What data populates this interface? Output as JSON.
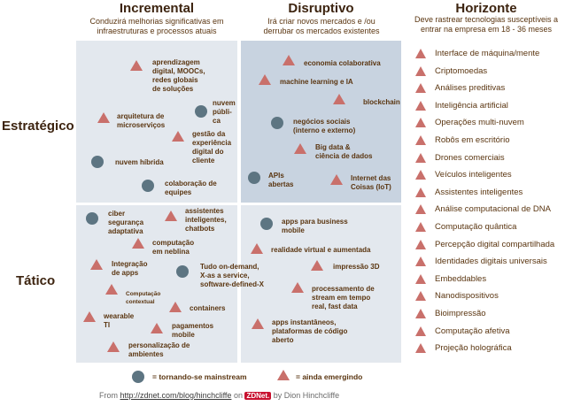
{
  "columns": {
    "incremental": {
      "title": "Incremental",
      "subtitle_1": "Conduzirá melhorias significativas em",
      "subtitle_2": "infraestruturas e processos atuais"
    },
    "disruptive": {
      "title": "Disruptivo",
      "subtitle_1": "Irá criar novos mercados e /ou",
      "subtitle_2": "derrubar os mercados existentes"
    },
    "horizon": {
      "title": "Horizonte",
      "subtitle_1": "Deve rastrear tecnologias susceptíveis a",
      "subtitle_2": "entrar na empresa em 18 - 36 meses"
    }
  },
  "rows": {
    "strategic": "Estratégico",
    "tactical": "Tático"
  },
  "quadrants": {
    "inc_strat": [
      {
        "lines": [
          "aprendizagem",
          "digital, MOOCs,",
          "redes globais",
          "de soluções"
        ],
        "marker": "triangle"
      },
      {
        "lines": [
          "nuvem",
          "públi-",
          "ca"
        ],
        "marker": "circle"
      },
      {
        "lines": [
          "arquitetura de",
          "microserviços"
        ],
        "marker": "triangle"
      },
      {
        "lines": [
          "gestão da",
          "experiência",
          "digital do",
          "cliente"
        ],
        "marker": "triangle"
      },
      {
        "lines": [
          "nuvem híbrida"
        ],
        "marker": "circle"
      },
      {
        "lines": [
          "colaboração de",
          "equipes"
        ],
        "marker": "circle"
      }
    ],
    "dis_strat": [
      {
        "lines": [
          "economia colaborativa"
        ],
        "marker": "triangle"
      },
      {
        "lines": [
          "machine learning e IA"
        ],
        "marker": "triangle"
      },
      {
        "lines": [
          "blockchain"
        ],
        "marker": "triangle"
      },
      {
        "lines": [
          "negócios sociais",
          "(interno e externo)"
        ],
        "marker": "circle"
      },
      {
        "lines": [
          "Big data &",
          "ciência de dados"
        ],
        "marker": "triangle"
      },
      {
        "lines": [
          "APIs",
          "abertas"
        ],
        "marker": "circle"
      },
      {
        "lines": [
          "Internet das",
          "Coisas (IoT)"
        ],
        "marker": "triangle"
      }
    ],
    "inc_tact": [
      {
        "lines": [
          "ciber",
          "segurança",
          "adaptativa"
        ],
        "marker": "circle"
      },
      {
        "lines": [
          "assistentes",
          "inteligentes,",
          "chatbots"
        ],
        "marker": "triangle"
      },
      {
        "lines": [
          "computação",
          "em neblina"
        ],
        "marker": "triangle"
      },
      {
        "lines": [
          "Integração",
          "de apps"
        ],
        "marker": "triangle"
      },
      {
        "lines": [
          "Tudo on-demand,",
          "X-as a service,",
          "software-defined-X"
        ],
        "marker": "circle"
      },
      {
        "lines": [
          "Computação",
          "contextual"
        ],
        "marker": "triangle"
      },
      {
        "lines": [
          "containers"
        ],
        "marker": "triangle"
      },
      {
        "lines": [
          "wearable",
          "TI"
        ],
        "marker": "triangle"
      },
      {
        "lines": [
          "pagamentos",
          "mobile"
        ],
        "marker": "triangle"
      },
      {
        "lines": [
          "personalização de",
          "ambientes"
        ],
        "marker": "triangle"
      }
    ],
    "dis_tact": [
      {
        "lines": [
          "apps para business",
          "mobile"
        ],
        "marker": "circle"
      },
      {
        "lines": [
          "realidade virtual e aumentada"
        ],
        "marker": "triangle"
      },
      {
        "lines": [
          "impressão 3D"
        ],
        "marker": "triangle"
      },
      {
        "lines": [
          "processamento de",
          "stream em tempo",
          "real, fast data"
        ],
        "marker": "triangle"
      },
      {
        "lines": [
          "apps instantâneos,",
          "plataformas de código",
          "aberto"
        ],
        "marker": "triangle"
      }
    ]
  },
  "horizon_items": [
    "Interface de máquina/mente",
    "Criptomoedas",
    "Análises preditivas",
    "Inteligência artificial",
    "Operações multi-nuvem",
    "Robôs em escritório",
    "Drones comerciais",
    "Veículos inteligentes",
    "Assistentes inteligentes",
    "Análise computacional de DNA",
    "Computação quântica",
    "Percepção digital compartilhada",
    "Identidades digitais universais",
    "Embeddables",
    "Nanodispositivos",
    "Bioimpressão",
    "Computação afetiva",
    "Projeção holográfica"
  ],
  "legend": {
    "circle": "= tornando-se mainstream",
    "triangle": "= ainda emergindo"
  },
  "source": {
    "prefix": "From",
    "url": "http://zdnet.com/blog/hinchcliffe",
    "on": "on",
    "logo": "ZDNet.",
    "by": "by Dion Hinchcliffe"
  },
  "colors": {
    "triangle": "#c9706b",
    "circle": "#5d7582",
    "text": "#5a3510"
  }
}
